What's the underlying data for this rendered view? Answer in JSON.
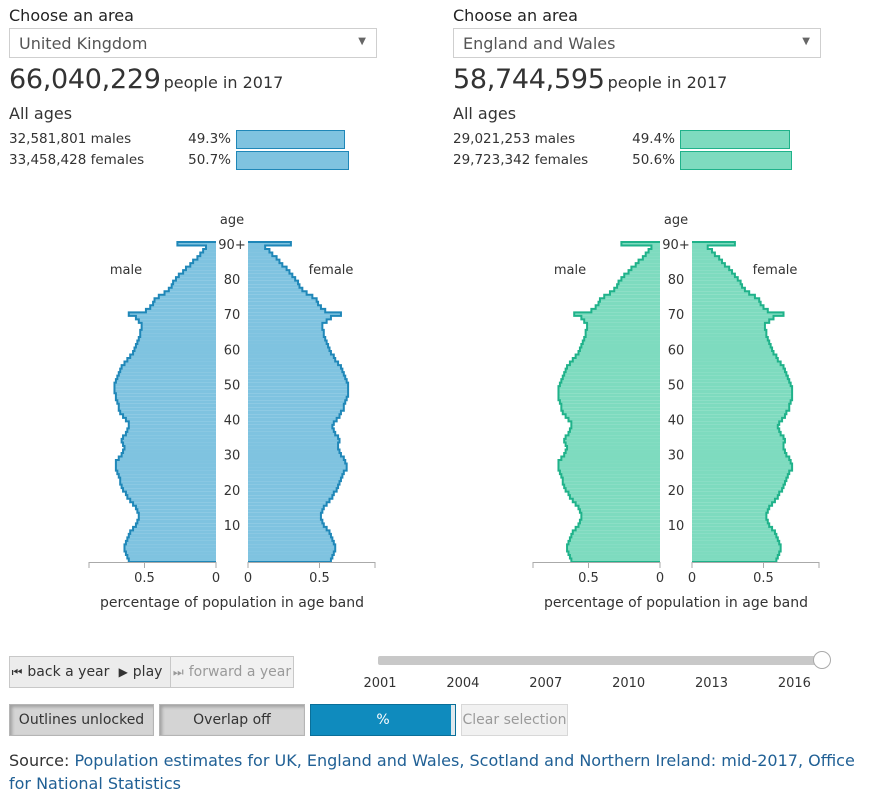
{
  "left": {
    "choose_label": "Choose an area",
    "area": "United Kingdom",
    "total": "66,040,229",
    "total_suffix": "people in 2017",
    "age_label": "All ages",
    "males_text": "32,581,801 males",
    "males_pct": "49.3%",
    "males_share": 49.3,
    "females_text": "33,458,428 females",
    "females_pct": "50.7%",
    "females_share": 50.7,
    "fill": "#7fc3e0",
    "stroke": "#1f87b8"
  },
  "right": {
    "choose_label": "Choose an area",
    "area": "England and Wales",
    "total": "58,744,595",
    "total_suffix": "people in 2017",
    "age_label": "All ages",
    "males_text": "29,021,253 males",
    "males_pct": "49.4%",
    "males_share": 49.4,
    "females_text": "29,723,342 females",
    "females_pct": "50.6%",
    "females_share": 50.6,
    "fill": "#7edbbf",
    "stroke": "#1fb28a"
  },
  "chart_data": [
    {
      "type": "bar",
      "orientation": "horizontal-pyramid",
      "area": "United Kingdom",
      "xlabel": "percentage of population in age band",
      "age_axis_label": "age",
      "age_ticks": [
        "10",
        "20",
        "30",
        "40",
        "50",
        "60",
        "70",
        "80",
        "90+"
      ],
      "x_ticks": [
        "0.5",
        "0"
      ],
      "xlim": [
        0,
        0.9
      ],
      "side_labels": {
        "male": "male",
        "female": "female"
      },
      "ages": [
        0,
        1,
        2,
        3,
        4,
        5,
        6,
        7,
        8,
        9,
        10,
        11,
        12,
        13,
        14,
        15,
        16,
        17,
        18,
        19,
        20,
        21,
        22,
        23,
        24,
        25,
        26,
        27,
        28,
        29,
        30,
        31,
        32,
        33,
        34,
        35,
        36,
        37,
        38,
        39,
        40,
        41,
        42,
        43,
        44,
        45,
        46,
        47,
        48,
        49,
        50,
        51,
        52,
        53,
        54,
        55,
        56,
        57,
        58,
        59,
        60,
        61,
        62,
        63,
        64,
        65,
        66,
        67,
        68,
        69,
        70,
        71,
        72,
        73,
        74,
        75,
        76,
        77,
        78,
        79,
        80,
        81,
        82,
        83,
        84,
        85,
        86,
        87,
        88,
        89,
        "90+"
      ],
      "series": [
        {
          "name": "male",
          "values": [
            0.61,
            0.62,
            0.63,
            0.64,
            0.64,
            0.63,
            0.62,
            0.61,
            0.6,
            0.58,
            0.56,
            0.55,
            0.54,
            0.54,
            0.55,
            0.56,
            0.58,
            0.6,
            0.62,
            0.63,
            0.65,
            0.66,
            0.67,
            0.67,
            0.68,
            0.69,
            0.7,
            0.7,
            0.7,
            0.68,
            0.66,
            0.65,
            0.64,
            0.65,
            0.66,
            0.65,
            0.63,
            0.62,
            0.61,
            0.61,
            0.63,
            0.65,
            0.67,
            0.68,
            0.68,
            0.69,
            0.7,
            0.7,
            0.71,
            0.71,
            0.71,
            0.7,
            0.69,
            0.68,
            0.67,
            0.66,
            0.64,
            0.62,
            0.6,
            0.58,
            0.57,
            0.56,
            0.55,
            0.54,
            0.53,
            0.53,
            0.52,
            0.52,
            0.54,
            0.56,
            0.61,
            0.49,
            0.46,
            0.44,
            0.43,
            0.4,
            0.36,
            0.33,
            0.31,
            0.3,
            0.28,
            0.26,
            0.23,
            0.21,
            0.18,
            0.16,
            0.13,
            0.11,
            0.09,
            0.07,
            0.27
          ]
        },
        {
          "name": "female",
          "values": [
            0.58,
            0.59,
            0.6,
            0.61,
            0.61,
            0.6,
            0.59,
            0.58,
            0.57,
            0.55,
            0.53,
            0.52,
            0.51,
            0.51,
            0.52,
            0.53,
            0.55,
            0.57,
            0.59,
            0.6,
            0.62,
            0.63,
            0.64,
            0.65,
            0.66,
            0.67,
            0.69,
            0.69,
            0.68,
            0.67,
            0.65,
            0.64,
            0.63,
            0.63,
            0.64,
            0.63,
            0.61,
            0.6,
            0.59,
            0.6,
            0.62,
            0.64,
            0.65,
            0.67,
            0.67,
            0.68,
            0.69,
            0.7,
            0.7,
            0.7,
            0.7,
            0.69,
            0.68,
            0.67,
            0.66,
            0.65,
            0.63,
            0.61,
            0.6,
            0.58,
            0.57,
            0.56,
            0.55,
            0.54,
            0.53,
            0.53,
            0.52,
            0.52,
            0.55,
            0.58,
            0.65,
            0.54,
            0.51,
            0.49,
            0.48,
            0.45,
            0.41,
            0.38,
            0.36,
            0.35,
            0.33,
            0.31,
            0.29,
            0.27,
            0.24,
            0.22,
            0.2,
            0.17,
            0.15,
            0.12,
            0.3
          ]
        }
      ]
    },
    {
      "type": "bar",
      "orientation": "horizontal-pyramid",
      "area": "England and Wales",
      "xlabel": "percentage of population in age band",
      "age_axis_label": "age",
      "age_ticks": [
        "10",
        "20",
        "30",
        "40",
        "50",
        "60",
        "70",
        "80",
        "90+"
      ],
      "x_ticks": [
        "0.5",
        "0"
      ],
      "xlim": [
        0,
        0.9
      ],
      "side_labels": {
        "male": "male",
        "female": "female"
      },
      "ages": [
        0,
        1,
        2,
        3,
        4,
        5,
        6,
        7,
        8,
        9,
        10,
        11,
        12,
        13,
        14,
        15,
        16,
        17,
        18,
        19,
        20,
        21,
        22,
        23,
        24,
        25,
        26,
        27,
        28,
        29,
        30,
        31,
        32,
        33,
        34,
        35,
        36,
        37,
        38,
        39,
        40,
        41,
        42,
        43,
        44,
        45,
        46,
        47,
        48,
        49,
        50,
        51,
        52,
        53,
        54,
        55,
        56,
        57,
        58,
        59,
        60,
        61,
        62,
        63,
        64,
        65,
        66,
        67,
        68,
        69,
        70,
        71,
        72,
        73,
        74,
        75,
        76,
        77,
        78,
        79,
        80,
        81,
        82,
        83,
        84,
        85,
        86,
        87,
        88,
        89,
        "90+"
      ],
      "series": [
        {
          "name": "male",
          "values": [
            0.62,
            0.63,
            0.64,
            0.65,
            0.65,
            0.64,
            0.63,
            0.62,
            0.61,
            0.59,
            0.57,
            0.56,
            0.55,
            0.55,
            0.56,
            0.57,
            0.59,
            0.61,
            0.63,
            0.64,
            0.66,
            0.67,
            0.68,
            0.68,
            0.69,
            0.7,
            0.71,
            0.71,
            0.71,
            0.69,
            0.67,
            0.66,
            0.65,
            0.66,
            0.67,
            0.66,
            0.64,
            0.63,
            0.62,
            0.62,
            0.64,
            0.66,
            0.68,
            0.69,
            0.69,
            0.7,
            0.71,
            0.71,
            0.71,
            0.71,
            0.7,
            0.69,
            0.68,
            0.67,
            0.66,
            0.65,
            0.63,
            0.61,
            0.59,
            0.57,
            0.56,
            0.55,
            0.54,
            0.53,
            0.52,
            0.52,
            0.51,
            0.51,
            0.53,
            0.55,
            0.6,
            0.48,
            0.45,
            0.43,
            0.42,
            0.39,
            0.35,
            0.32,
            0.3,
            0.29,
            0.27,
            0.25,
            0.22,
            0.2,
            0.17,
            0.15,
            0.12,
            0.1,
            0.08,
            0.06,
            0.27
          ]
        },
        {
          "name": "female",
          "values": [
            0.59,
            0.6,
            0.61,
            0.62,
            0.62,
            0.61,
            0.6,
            0.59,
            0.58,
            0.56,
            0.54,
            0.53,
            0.52,
            0.52,
            0.53,
            0.54,
            0.56,
            0.58,
            0.6,
            0.61,
            0.63,
            0.64,
            0.65,
            0.66,
            0.67,
            0.68,
            0.7,
            0.7,
            0.69,
            0.68,
            0.66,
            0.65,
            0.64,
            0.64,
            0.65,
            0.64,
            0.62,
            0.61,
            0.6,
            0.61,
            0.63,
            0.65,
            0.66,
            0.68,
            0.68,
            0.69,
            0.7,
            0.7,
            0.7,
            0.7,
            0.69,
            0.68,
            0.67,
            0.66,
            0.65,
            0.64,
            0.62,
            0.6,
            0.59,
            0.57,
            0.56,
            0.55,
            0.54,
            0.53,
            0.52,
            0.52,
            0.51,
            0.51,
            0.54,
            0.57,
            0.64,
            0.53,
            0.5,
            0.48,
            0.47,
            0.44,
            0.4,
            0.37,
            0.35,
            0.34,
            0.32,
            0.3,
            0.28,
            0.26,
            0.23,
            0.21,
            0.19,
            0.16,
            0.14,
            0.11,
            0.3
          ]
        }
      ]
    }
  ],
  "controls": {
    "back_label": "back a year",
    "play_label": "play",
    "forward_label": "forward a year",
    "outlines_label": "Outlines unlocked",
    "overlap_label": "Overlap off",
    "percent_label": "%",
    "clear_label": "Clear selection",
    "percent_color": "#0f8bbe"
  },
  "timeline": {
    "ticks": [
      "2001",
      "2004",
      "2007",
      "2010",
      "2013",
      "2016"
    ],
    "min_year": 2001,
    "max_year": 2017,
    "current_year": 2017
  },
  "source": {
    "prefix": "Source: ",
    "link_text": "Population estimates for UK, England and Wales, Scotland and Northern Ireland: mid-2017, Office for National Statistics"
  }
}
